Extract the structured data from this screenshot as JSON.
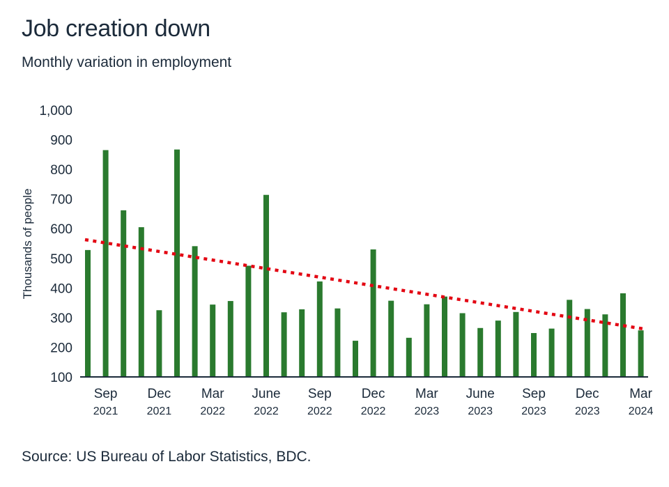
{
  "header": {
    "title": "Job creation down",
    "subtitle": "Monthly variation in employment"
  },
  "footer": {
    "source": "Source: US Bureau of Labor Statistics, BDC."
  },
  "colors": {
    "bar": "#2a7a2e",
    "trend": "#e30613",
    "axis": "#1b2a3a"
  },
  "chart_data": {
    "type": "bar",
    "ylabel": "Thousands of people",
    "ylim": [
      100,
      1000
    ],
    "yticks": [
      "1,000",
      "900",
      "800",
      "700",
      "600",
      "500",
      "400",
      "300",
      "200",
      "100"
    ],
    "xtick_labels": [
      {
        "month": "Sep",
        "year": "2021"
      },
      {
        "month": "Dec",
        "year": "2021"
      },
      {
        "month": "Mar",
        "year": "2022"
      },
      {
        "month": "June",
        "year": "2022"
      },
      {
        "month": "Sep",
        "year": "2022"
      },
      {
        "month": "Dec",
        "year": "2022"
      },
      {
        "month": "Mar",
        "year": "2023"
      },
      {
        "month": "June",
        "year": "2023"
      },
      {
        "month": "Sep",
        "year": "2023"
      },
      {
        "month": "Dec",
        "year": "2023"
      },
      {
        "month": "Mar",
        "year": "2024"
      }
    ],
    "categories": [
      "Aug 2021",
      "Sep 2021",
      "Oct 2021",
      "Nov 2021",
      "Dec 2021",
      "Jan 2022",
      "Feb 2022",
      "Mar 2022",
      "Apr 2022",
      "May 2022",
      "June 2022",
      "July 2022",
      "Aug 2022",
      "Sep 2022",
      "Oct 2022",
      "Nov 2022",
      "Dec 2022",
      "Jan 2023",
      "Feb 2023",
      "Mar 2023",
      "Apr 2023",
      "May 2023",
      "June 2023",
      "July 2023",
      "Aug 2023",
      "Sep 2023",
      "Oct 2023",
      "Nov 2023",
      "Dec 2023",
      "Jan 2024",
      "Feb 2024",
      "Mar 2024"
    ],
    "values": [
      528,
      865,
      662,
      605,
      325,
      867,
      541,
      344,
      356,
      475,
      714,
      318,
      328,
      422,
      331,
      222,
      530,
      357,
      232,
      345,
      371,
      315,
      265,
      290,
      319,
      248,
      263,
      360,
      329,
      311,
      382,
      257
    ],
    "trend": {
      "start": 563,
      "end": 262,
      "style": "dotted"
    },
    "grid": false
  }
}
